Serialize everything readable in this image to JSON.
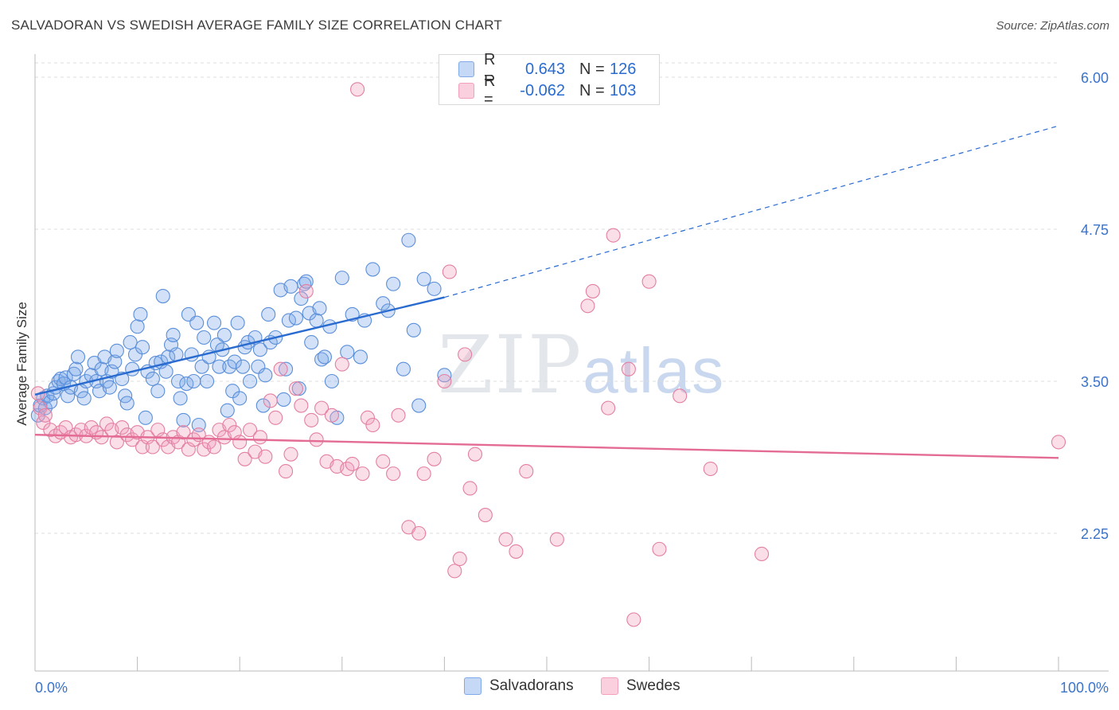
{
  "title": "SALVADORAN VS SWEDISH AVERAGE FAMILY SIZE CORRELATION CHART",
  "source": "Source: ZipAtlas.com",
  "watermark": {
    "zip": "ZIP",
    "atlas": "atlas"
  },
  "legend": {
    "rows": [
      {
        "r_label": "R =",
        "r_value": "0.643",
        "n_label": "N =",
        "n_value": "126",
        "color": "#7fa9e8"
      },
      {
        "r_label": "R =",
        "r_value": "-0.062",
        "n_label": "N =",
        "n_value": "103",
        "color": "#f2a0bc"
      }
    ]
  },
  "bottom_legend": [
    {
      "name": "Salvadorans",
      "color": "#7fa9e8"
    },
    {
      "name": "Swedes",
      "color": "#f2a0bc"
    }
  ],
  "chart_data": {
    "type": "scatter",
    "ylabel": "Average Family Size",
    "xlabel": "",
    "xlim": [
      0,
      100
    ],
    "ylim": [
      1.25,
      6.1
    ],
    "x_tick_labels": [
      "0.0%",
      "100.0%"
    ],
    "y_ticks": [
      2.25,
      3.5,
      4.75,
      6.0
    ],
    "y_tick_labels": [
      "2.25",
      "3.50",
      "4.75",
      "6.00"
    ],
    "grid": "horizontal dashed",
    "series": [
      {
        "name": "Salvadorans",
        "color": "#7fa9e8",
        "stroke": "#5b8fd9",
        "trend": {
          "x0": 0,
          "y0": 3.39,
          "x1": 40,
          "y1": 4.19,
          "dash_to_x": 100,
          "dash_to_y": 5.6,
          "color": "#2a6bd0"
        },
        "points": [
          [
            0.3,
            3.22
          ],
          [
            0.5,
            3.3
          ],
          [
            0.8,
            3.36
          ],
          [
            1,
            3.28
          ],
          [
            1.2,
            3.38
          ],
          [
            1.5,
            3.33
          ],
          [
            1.8,
            3.4
          ],
          [
            2,
            3.45
          ],
          [
            2.3,
            3.5
          ],
          [
            2.5,
            3.52
          ],
          [
            2.8,
            3.48
          ],
          [
            3,
            3.53
          ],
          [
            3.2,
            3.38
          ],
          [
            3.5,
            3.45
          ],
          [
            3.8,
            3.56
          ],
          [
            4,
            3.6
          ],
          [
            4.2,
            3.7
          ],
          [
            4.5,
            3.42
          ],
          [
            4.8,
            3.36
          ],
          [
            5,
            3.5
          ],
          [
            5.5,
            3.55
          ],
          [
            5.8,
            3.65
          ],
          [
            6,
            3.5
          ],
          [
            6.3,
            3.42
          ],
          [
            6.5,
            3.6
          ],
          [
            6.8,
            3.7
          ],
          [
            7,
            3.5
          ],
          [
            7.3,
            3.45
          ],
          [
            7.5,
            3.58
          ],
          [
            7.8,
            3.66
          ],
          [
            8,
            3.75
          ],
          [
            8.5,
            3.52
          ],
          [
            8.8,
            3.38
          ],
          [
            9,
            3.32
          ],
          [
            9.3,
            3.82
          ],
          [
            9.5,
            3.6
          ],
          [
            9.8,
            3.72
          ],
          [
            10,
            3.95
          ],
          [
            10.3,
            4.05
          ],
          [
            10.5,
            3.78
          ],
          [
            10.8,
            3.2
          ],
          [
            11,
            3.58
          ],
          [
            11.5,
            3.52
          ],
          [
            11.8,
            3.65
          ],
          [
            12,
            3.42
          ],
          [
            12.3,
            3.66
          ],
          [
            12.5,
            4.2
          ],
          [
            12.8,
            3.58
          ],
          [
            13,
            3.7
          ],
          [
            13.3,
            3.8
          ],
          [
            13.5,
            3.88
          ],
          [
            13.8,
            3.72
          ],
          [
            14,
            3.5
          ],
          [
            14.2,
            3.36
          ],
          [
            14.5,
            3.18
          ],
          [
            14.8,
            3.48
          ],
          [
            15,
            4.05
          ],
          [
            15.3,
            3.72
          ],
          [
            15.5,
            3.5
          ],
          [
            15.8,
            3.98
          ],
          [
            16,
            3.14
          ],
          [
            16.3,
            3.62
          ],
          [
            16.5,
            3.86
          ],
          [
            16.8,
            3.5
          ],
          [
            17,
            3.7
          ],
          [
            17.5,
            3.98
          ],
          [
            17.8,
            3.8
          ],
          [
            18,
            3.62
          ],
          [
            18.3,
            3.76
          ],
          [
            18.5,
            3.88
          ],
          [
            18.8,
            3.26
          ],
          [
            19,
            3.62
          ],
          [
            19.3,
            3.42
          ],
          [
            19.5,
            3.66
          ],
          [
            19.8,
            3.98
          ],
          [
            20,
            3.36
          ],
          [
            20.3,
            3.62
          ],
          [
            20.5,
            3.78
          ],
          [
            20.8,
            3.82
          ],
          [
            21,
            3.5
          ],
          [
            21.5,
            3.86
          ],
          [
            21.8,
            3.62
          ],
          [
            22,
            3.76
          ],
          [
            22.3,
            3.3
          ],
          [
            22.5,
            3.55
          ],
          [
            22.8,
            4.05
          ],
          [
            23,
            3.82
          ],
          [
            23.5,
            3.86
          ],
          [
            24,
            4.25
          ],
          [
            24.3,
            3.35
          ],
          [
            24.5,
            3.6
          ],
          [
            24.8,
            4.0
          ],
          [
            25,
            4.28
          ],
          [
            25.5,
            4.02
          ],
          [
            25.8,
            3.44
          ],
          [
            26,
            4.18
          ],
          [
            26.3,
            4.3
          ],
          [
            26.5,
            4.32
          ],
          [
            26.8,
            4.06
          ],
          [
            27,
            3.82
          ],
          [
            27.5,
            4.0
          ],
          [
            27.8,
            4.1
          ],
          [
            28,
            3.68
          ],
          [
            28.3,
            3.7
          ],
          [
            28.8,
            3.95
          ],
          [
            29,
            3.5
          ],
          [
            29.5,
            3.2
          ],
          [
            30,
            4.35
          ],
          [
            30.5,
            3.74
          ],
          [
            31,
            4.05
          ],
          [
            31.8,
            3.7
          ],
          [
            32.2,
            4.0
          ],
          [
            33,
            4.42
          ],
          [
            34,
            4.14
          ],
          [
            34.5,
            4.08
          ],
          [
            35,
            4.3
          ],
          [
            36,
            3.6
          ],
          [
            36.5,
            4.66
          ],
          [
            37,
            3.92
          ],
          [
            37.5,
            3.3
          ],
          [
            38,
            4.34
          ],
          [
            39,
            4.26
          ],
          [
            40,
            3.55
          ]
        ]
      },
      {
        "name": "Swedes",
        "color": "#f2a0bc",
        "stroke": "#e37fa2",
        "trend": {
          "x0": 0,
          "y0": 3.06,
          "x1": 100,
          "y1": 2.87,
          "color": "#e36b94"
        },
        "points": [
          [
            0.3,
            3.4
          ],
          [
            0.5,
            3.28
          ],
          [
            0.8,
            3.16
          ],
          [
            1,
            3.22
          ],
          [
            1.5,
            3.1
          ],
          [
            2,
            3.05
          ],
          [
            2.5,
            3.08
          ],
          [
            3,
            3.12
          ],
          [
            3.5,
            3.04
          ],
          [
            4,
            3.06
          ],
          [
            4.5,
            3.1
          ],
          [
            5,
            3.05
          ],
          [
            5.5,
            3.12
          ],
          [
            6,
            3.08
          ],
          [
            6.5,
            3.04
          ],
          [
            7,
            3.15
          ],
          [
            7.5,
            3.1
          ],
          [
            8,
            3.0
          ],
          [
            8.5,
            3.12
          ],
          [
            9,
            3.06
          ],
          [
            9.5,
            3.02
          ],
          [
            10,
            3.08
          ],
          [
            10.5,
            2.96
          ],
          [
            11,
            3.04
          ],
          [
            11.5,
            2.96
          ],
          [
            12,
            3.1
          ],
          [
            12.5,
            3.02
          ],
          [
            13,
            2.96
          ],
          [
            13.5,
            3.04
          ],
          [
            14,
            3.0
          ],
          [
            14.5,
            3.08
          ],
          [
            15,
            2.94
          ],
          [
            15.5,
            3.02
          ],
          [
            16,
            3.06
          ],
          [
            16.5,
            2.94
          ],
          [
            17,
            3.0
          ],
          [
            17.5,
            2.96
          ],
          [
            18,
            3.1
          ],
          [
            18.5,
            3.04
          ],
          [
            19,
            3.14
          ],
          [
            19.5,
            3.08
          ],
          [
            20,
            3.0
          ],
          [
            20.5,
            2.86
          ],
          [
            21,
            3.1
          ],
          [
            21.5,
            2.92
          ],
          [
            22,
            3.04
          ],
          [
            22.5,
            2.88
          ],
          [
            23,
            3.34
          ],
          [
            23.5,
            3.2
          ],
          [
            24,
            3.6
          ],
          [
            24.5,
            2.76
          ],
          [
            25,
            2.9
          ],
          [
            25.5,
            3.44
          ],
          [
            26,
            3.3
          ],
          [
            26.5,
            4.24
          ],
          [
            27,
            3.18
          ],
          [
            27.5,
            3.02
          ],
          [
            28,
            3.28
          ],
          [
            28.5,
            2.84
          ],
          [
            29,
            3.22
          ],
          [
            29.5,
            2.8
          ],
          [
            30,
            3.64
          ],
          [
            30.5,
            2.78
          ],
          [
            31,
            2.82
          ],
          [
            31.5,
            5.9
          ],
          [
            32,
            2.74
          ],
          [
            32.5,
            3.2
          ],
          [
            33,
            3.14
          ],
          [
            34,
            2.84
          ],
          [
            35,
            2.74
          ],
          [
            35.5,
            3.22
          ],
          [
            36.5,
            2.3
          ],
          [
            37.5,
            2.25
          ],
          [
            38,
            2.74
          ],
          [
            39,
            2.86
          ],
          [
            40,
            3.5
          ],
          [
            40.5,
            4.4
          ],
          [
            41,
            1.94
          ],
          [
            41.5,
            2.04
          ],
          [
            42,
            3.72
          ],
          [
            42.5,
            2.62
          ],
          [
            43,
            2.9
          ],
          [
            44,
            2.4
          ],
          [
            46,
            2.2
          ],
          [
            47,
            2.1
          ],
          [
            48,
            2.76
          ],
          [
            51,
            2.2
          ],
          [
            54,
            4.12
          ],
          [
            54.5,
            4.24
          ],
          [
            56,
            3.28
          ],
          [
            56.5,
            4.7
          ],
          [
            58,
            3.6
          ],
          [
            58.5,
            1.54
          ],
          [
            60,
            4.32
          ],
          [
            61,
            2.12
          ],
          [
            63,
            3.38
          ],
          [
            66,
            2.78
          ],
          [
            71,
            2.08
          ],
          [
            100,
            3.0
          ]
        ]
      }
    ]
  }
}
